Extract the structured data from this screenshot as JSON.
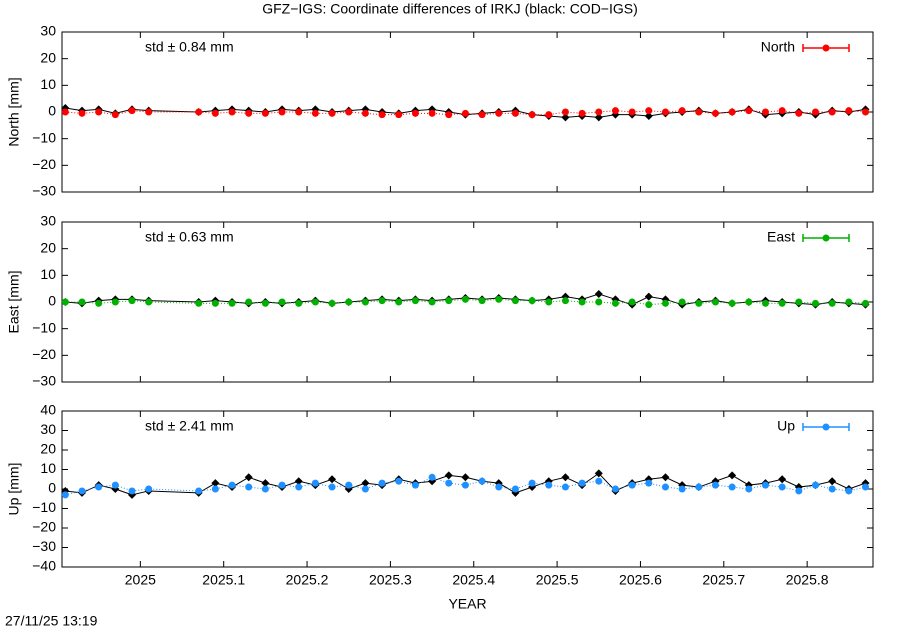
{
  "title": "GFZ−IGS: Coordinate differences of IRKJ (black: COD−IGS)",
  "footer": "27/11/25 13:19",
  "chart_data": [
    {
      "type": "line",
      "ylabel": "North [mm]",
      "annotation": {
        "text": "std ± 0.84 mm",
        "color": "#ff0000"
      },
      "legend": "upper right",
      "x": [
        2024.91,
        2024.93,
        2024.95,
        2024.97,
        2024.99,
        2025.01,
        2025.07,
        2025.09,
        2025.11,
        2025.13,
        2025.15,
        2025.17,
        2025.19,
        2025.21,
        2025.23,
        2025.25,
        2025.27,
        2025.29,
        2025.31,
        2025.33,
        2025.35,
        2025.37,
        2025.39,
        2025.41,
        2025.43,
        2025.45,
        2025.47,
        2025.49,
        2025.51,
        2025.53,
        2025.55,
        2025.57,
        2025.59,
        2025.61,
        2025.63,
        2025.65,
        2025.67,
        2025.69,
        2025.71,
        2025.73,
        2025.75,
        2025.77,
        2025.79,
        2025.81,
        2025.83,
        2025.85,
        2025.87
      ],
      "xlim": [
        2024.906,
        2025.879
      ],
      "ylim": [
        -30,
        30
      ],
      "yticks": [
        {
          "value": -30,
          "label": "−30"
        },
        {
          "value": -20,
          "label": "−20"
        },
        {
          "value": -10,
          "label": "−10"
        },
        0,
        10,
        20,
        30
      ],
      "series": [
        {
          "color": "#000000",
          "values": [
            1.5,
            0.5,
            1,
            -0.5,
            1,
            0.5,
            0,
            0.5,
            1,
            0.5,
            0,
            1,
            0.5,
            1,
            0,
            0.5,
            1,
            0,
            -0.5,
            0.5,
            1,
            0,
            -1,
            -0.5,
            0,
            0.5,
            -1,
            -1.5,
            -2,
            -1.5,
            -2,
            -1,
            -1,
            -1.5,
            -0.5,
            0,
            0.5,
            -0.5,
            0,
            1,
            -1,
            -0.5,
            0,
            -1,
            0.5,
            0,
            1
          ]
        },
        {
          "name": "North",
          "color": "#ff0000",
          "values": [
            0,
            -0.5,
            0,
            -1,
            0.5,
            0,
            0,
            -0.5,
            0,
            -0.5,
            -0.5,
            0,
            0,
            -0.5,
            -0.5,
            0,
            -0.5,
            -1,
            -1,
            -0.5,
            -0.5,
            -1,
            -0.5,
            -1,
            -0.5,
            -0.5,
            -1,
            -1,
            0,
            -0.5,
            0,
            0.5,
            0,
            0.5,
            0,
            0.5,
            0,
            -0.5,
            0,
            0.5,
            0,
            0.5,
            -0.5,
            0,
            0,
            0.5,
            0
          ]
        }
      ]
    },
    {
      "type": "line",
      "ylabel": "East [mm]",
      "annotation": {
        "text": "std ± 0.63 mm",
        "color": "#00b000"
      },
      "legend": "upper right",
      "x": [
        2024.91,
        2024.93,
        2024.95,
        2024.97,
        2024.99,
        2025.01,
        2025.07,
        2025.09,
        2025.11,
        2025.13,
        2025.15,
        2025.17,
        2025.19,
        2025.21,
        2025.23,
        2025.25,
        2025.27,
        2025.29,
        2025.31,
        2025.33,
        2025.35,
        2025.37,
        2025.39,
        2025.41,
        2025.43,
        2025.45,
        2025.47,
        2025.49,
        2025.51,
        2025.53,
        2025.55,
        2025.57,
        2025.59,
        2025.61,
        2025.63,
        2025.65,
        2025.67,
        2025.69,
        2025.71,
        2025.73,
        2025.75,
        2025.77,
        2025.79,
        2025.81,
        2025.83,
        2025.85,
        2025.87
      ],
      "xlim": [
        2024.906,
        2025.879
      ],
      "ylim": [
        -30,
        30
      ],
      "yticks": [
        {
          "value": -30,
          "label": "−30"
        },
        {
          "value": -20,
          "label": "−20"
        },
        {
          "value": -10,
          "label": "−10"
        },
        0,
        10,
        20,
        30
      ],
      "series": [
        {
          "color": "#000000",
          "values": [
            0,
            -0.5,
            0.5,
            1,
            1,
            0.5,
            0,
            0.5,
            0,
            -0.5,
            0,
            -0.5,
            0,
            0.5,
            -0.5,
            0,
            0.5,
            1,
            0.5,
            1,
            0.5,
            1,
            1.5,
            1,
            1.5,
            1,
            0.5,
            1,
            2,
            1,
            3,
            1,
            -1,
            2,
            1,
            -1,
            0,
            0.5,
            -0.5,
            0,
            0.5,
            0,
            -0.5,
            -1,
            0,
            -0.5,
            -1
          ]
        },
        {
          "name": "East",
          "color": "#00b000",
          "values": [
            0,
            0,
            -0.5,
            0,
            0.5,
            0,
            -0.5,
            -0.5,
            -0.5,
            0,
            -0.5,
            0,
            -0.5,
            0,
            -0.5,
            0,
            0,
            0.5,
            0,
            0.5,
            0,
            0.5,
            1,
            0.5,
            1,
            0.5,
            0.5,
            0,
            0.5,
            0,
            0,
            -0.5,
            0,
            -1,
            -0.5,
            0,
            -0.5,
            0,
            -0.5,
            0,
            -0.5,
            -0.5,
            0,
            -0.5,
            -0.5,
            0,
            -0.5
          ]
        }
      ]
    },
    {
      "type": "line",
      "ylabel": "Up [mm]",
      "xlabel": "YEAR",
      "annotation": {
        "text": "std ± 2.41 mm",
        "color": "#1e90ff"
      },
      "legend": "upper right",
      "x": [
        2024.91,
        2024.93,
        2024.95,
        2024.97,
        2024.99,
        2025.01,
        2025.07,
        2025.09,
        2025.11,
        2025.13,
        2025.15,
        2025.17,
        2025.19,
        2025.21,
        2025.23,
        2025.25,
        2025.27,
        2025.29,
        2025.31,
        2025.33,
        2025.35,
        2025.37,
        2025.39,
        2025.41,
        2025.43,
        2025.45,
        2025.47,
        2025.49,
        2025.51,
        2025.53,
        2025.55,
        2025.57,
        2025.59,
        2025.61,
        2025.63,
        2025.65,
        2025.67,
        2025.69,
        2025.71,
        2025.73,
        2025.75,
        2025.77,
        2025.79,
        2025.81,
        2025.83,
        2025.85,
        2025.87
      ],
      "xlim": [
        2024.906,
        2025.879
      ],
      "xticks": [
        2025,
        2025.1,
        2025.2,
        2025.3,
        2025.4,
        2025.5,
        2025.6,
        2025.7,
        2025.8
      ],
      "ylim": [
        -40,
        40
      ],
      "yticks": [
        {
          "value": -40,
          "label": "−40"
        },
        {
          "value": -30,
          "label": "−30"
        },
        {
          "value": -20,
          "label": "−20"
        },
        {
          "value": -10,
          "label": "−10"
        },
        0,
        10,
        20,
        30,
        40
      ],
      "series": [
        {
          "color": "#000000",
          "values": [
            -1,
            -2,
            2,
            0,
            -3,
            -1,
            -2,
            3,
            1,
            6,
            3,
            1,
            4,
            2,
            5,
            0,
            3,
            2,
            5,
            3,
            4,
            7,
            6,
            4,
            3,
            -2,
            1,
            4,
            6,
            2,
            8,
            -1,
            3,
            5,
            6,
            2,
            1,
            4,
            7,
            2,
            3,
            5,
            1,
            2,
            4,
            0,
            3
          ]
        },
        {
          "name": "Up",
          "color": "#1e90ff",
          "values": [
            -3,
            -1,
            1,
            2,
            -1,
            0,
            -1,
            0,
            2,
            1,
            0,
            2,
            1,
            3,
            1,
            2,
            0,
            3,
            4,
            2,
            6,
            3,
            2,
            4,
            1,
            0,
            3,
            2,
            1,
            3,
            4,
            0,
            2,
            3,
            1,
            0,
            1,
            2,
            1,
            0,
            2,
            1,
            -1,
            2,
            0,
            -1,
            1
          ]
        }
      ]
    }
  ]
}
